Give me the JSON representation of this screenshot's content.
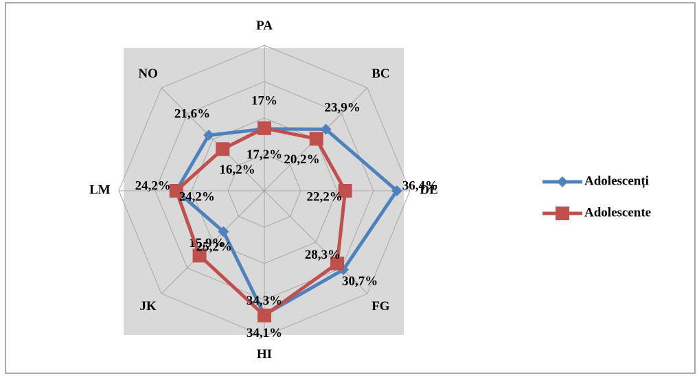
{
  "chart_data": {
    "type": "radar",
    "categories": [
      "PA",
      "BC",
      "DE",
      "FG",
      "HI",
      "JK",
      "LM",
      "NO"
    ],
    "series": [
      {
        "name": "Adolescenți",
        "color": "#4f81bd",
        "marker": "diamond",
        "values": [
          17,
          23.9,
          36.4,
          30.7,
          34.1,
          15.9,
          24.2,
          21.6
        ],
        "value_labels": [
          "17%",
          "23,9%",
          "36,4%",
          "30,7%",
          "34,1%",
          "15,9%",
          "24,2%",
          "21,6%"
        ]
      },
      {
        "name": "Adolescente",
        "color": "#c0504d",
        "marker": "square",
        "values": [
          17.2,
          20.2,
          22.2,
          28.3,
          34.3,
          25.2,
          24.2,
          16.2
        ],
        "value_labels": [
          "17,2%",
          "20,2%",
          "22,2%",
          "28,3%",
          "34,3%",
          "25,2%",
          "24,2%",
          "16,2%"
        ]
      }
    ],
    "ylim": [
      0,
      40
    ],
    "yticks": [
      0,
      10,
      20,
      30,
      40
    ],
    "grid": true,
    "legend": "right"
  }
}
